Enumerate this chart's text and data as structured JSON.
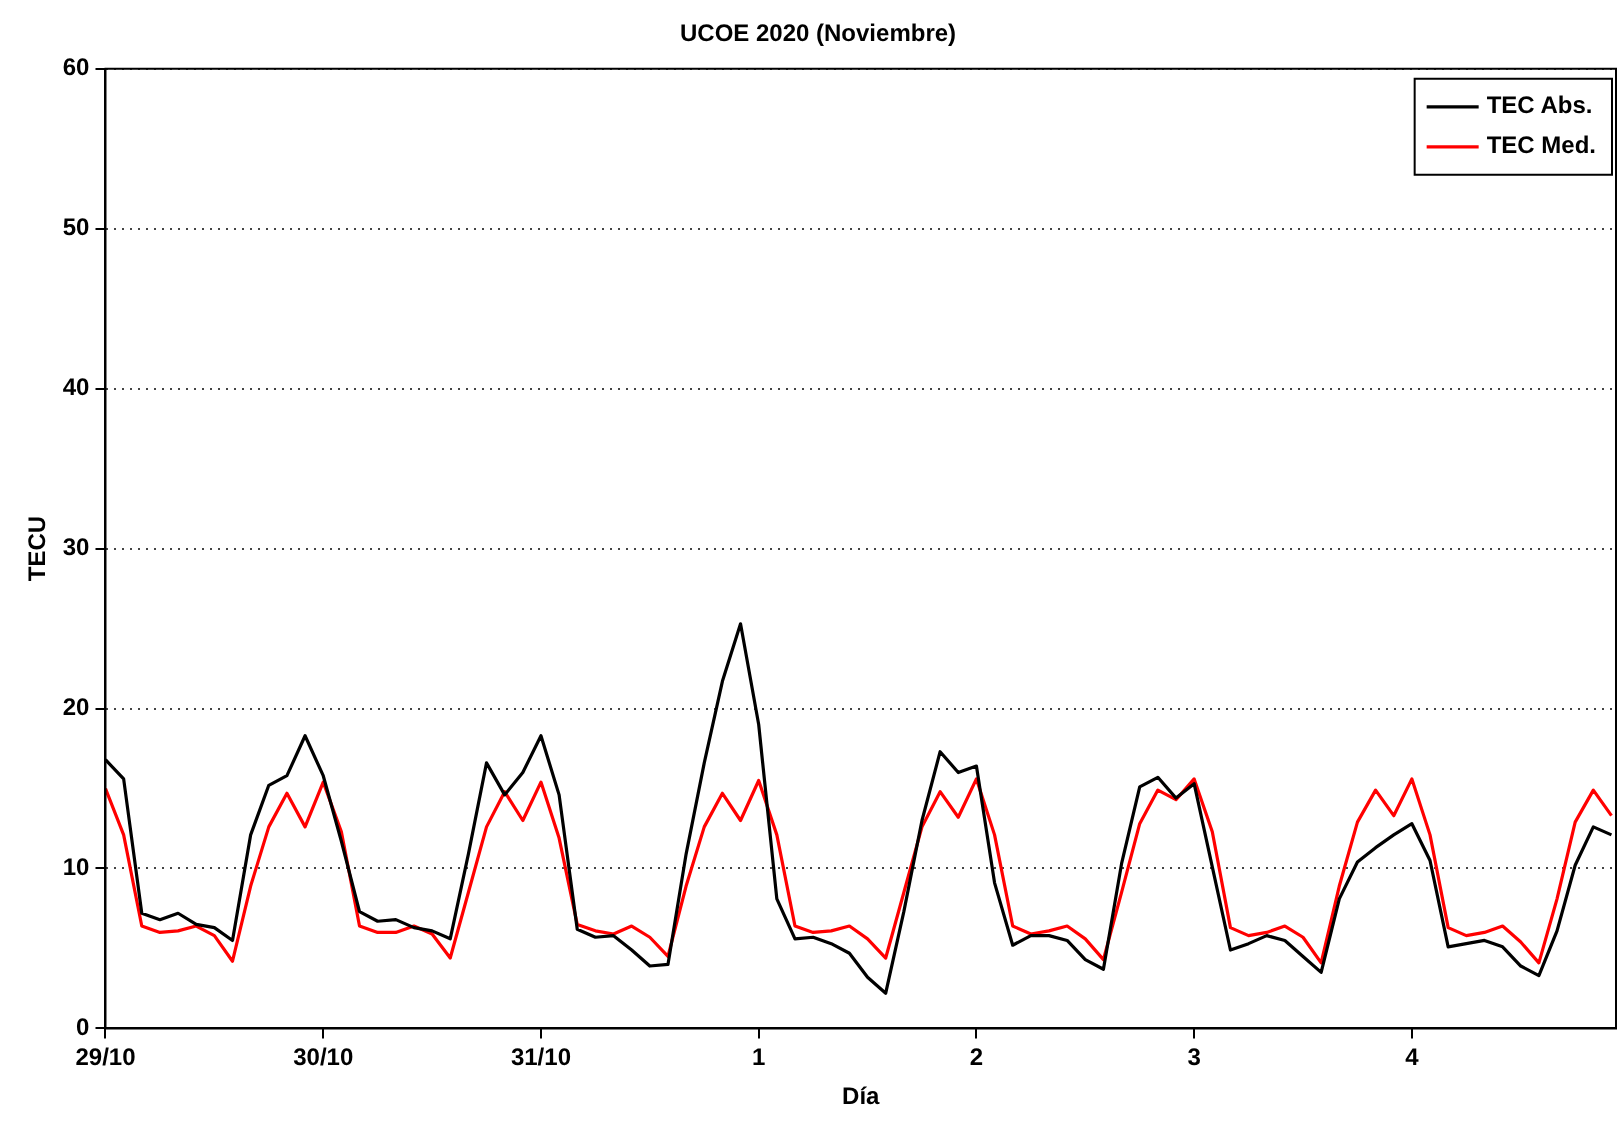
{
  "chart_data": {
    "type": "line",
    "title": "UCOE 2020 (Noviembre)",
    "xlabel": "Día",
    "ylabel": "TECU",
    "x": [
      "2020-10-29T00:00",
      "2020-10-29T02:00",
      "2020-10-29T04:00",
      "2020-10-29T06:00",
      "2020-10-29T08:00",
      "2020-10-29T10:00",
      "2020-10-29T12:00",
      "2020-10-29T14:00",
      "2020-10-29T16:00",
      "2020-10-29T18:00",
      "2020-10-29T20:00",
      "2020-10-29T22:00",
      "2020-10-30T00:00",
      "2020-10-30T02:00",
      "2020-10-30T04:00",
      "2020-10-30T06:00",
      "2020-10-30T08:00",
      "2020-10-30T10:00",
      "2020-10-30T12:00",
      "2020-10-30T14:00",
      "2020-10-30T16:00",
      "2020-10-30T18:00",
      "2020-10-30T20:00",
      "2020-10-30T22:00",
      "2020-10-31T00:00",
      "2020-10-31T02:00",
      "2020-10-31T04:00",
      "2020-10-31T06:00",
      "2020-10-31T08:00",
      "2020-10-31T10:00",
      "2020-10-31T12:00",
      "2020-10-31T14:00",
      "2020-10-31T16:00",
      "2020-10-31T18:00",
      "2020-10-31T20:00",
      "2020-10-31T22:00",
      "2020-11-01T00:00",
      "2020-11-01T02:00",
      "2020-11-01T04:00",
      "2020-11-01T06:00",
      "2020-11-01T08:00",
      "2020-11-01T10:00",
      "2020-11-01T12:00",
      "2020-11-01T14:00",
      "2020-11-01T16:00",
      "2020-11-01T18:00",
      "2020-11-01T20:00",
      "2020-11-01T22:00",
      "2020-11-02T00:00",
      "2020-11-02T02:00",
      "2020-11-02T04:00",
      "2020-11-02T06:00",
      "2020-11-02T08:00",
      "2020-11-02T10:00",
      "2020-11-02T12:00",
      "2020-11-02T14:00",
      "2020-11-02T16:00",
      "2020-11-02T18:00",
      "2020-11-02T20:00",
      "2020-11-02T22:00",
      "2020-11-03T00:00",
      "2020-11-03T02:00",
      "2020-11-03T04:00",
      "2020-11-03T06:00",
      "2020-11-03T08:00",
      "2020-11-03T10:00",
      "2020-11-03T12:00",
      "2020-11-03T14:00",
      "2020-11-03T16:00",
      "2020-11-03T18:00",
      "2020-11-03T20:00",
      "2020-11-03T22:00",
      "2020-11-04T00:00",
      "2020-11-04T02:00",
      "2020-11-04T04:00",
      "2020-11-04T06:00",
      "2020-11-04T08:00",
      "2020-11-04T10:00",
      "2020-11-04T12:00",
      "2020-11-04T14:00",
      "2020-11-04T16:00",
      "2020-11-04T18:00",
      "2020-11-04T20:00",
      "2020-11-04T22:00"
    ],
    "series": [
      {
        "name": "TEC Abs.",
        "color": "#000000",
        "values": [
          16.8,
          15.6,
          7.2,
          6.8,
          7.2,
          6.5,
          6.3,
          5.5,
          12.1,
          15.2,
          15.8,
          18.3,
          15.8,
          11.7,
          7.3,
          6.7,
          6.8,
          6.3,
          6.1,
          5.6,
          10.9,
          16.6,
          14.6,
          16.0,
          18.3,
          14.6,
          6.2,
          5.7,
          5.8,
          4.9,
          3.9,
          4.0,
          10.9,
          16.6,
          21.7,
          25.3,
          19.0,
          8.1,
          5.6,
          5.7,
          5.3,
          4.7,
          3.2,
          2.2,
          7.3,
          13.0,
          17.3,
          16.0,
          16.4,
          9.1,
          5.2,
          5.8,
          5.8,
          5.5,
          4.3,
          3.7,
          10.3,
          15.1,
          15.7,
          14.4,
          15.3,
          10.1,
          4.9,
          5.3,
          5.8,
          5.5,
          4.5,
          3.5,
          8.1,
          10.4,
          11.3,
          12.1,
          12.8,
          10.5,
          5.1,
          5.3,
          5.5,
          5.1,
          3.9,
          3.3,
          6.1,
          10.2,
          12.6,
          12.1
        ]
      },
      {
        "name": "TEC Med.",
        "color": "#ff0000",
        "values": [
          15.0,
          12.1,
          6.4,
          6.0,
          6.1,
          6.4,
          5.8,
          4.2,
          8.9,
          12.6,
          14.7,
          12.6,
          15.4,
          12.3,
          6.4,
          6.0,
          6.0,
          6.4,
          5.9,
          4.4,
          8.5,
          12.6,
          14.8,
          13.0,
          15.4,
          11.9,
          6.5,
          6.1,
          5.9,
          6.4,
          5.7,
          4.5,
          8.9,
          12.6,
          14.7,
          13.0,
          15.5,
          12.1,
          6.4,
          6.0,
          6.1,
          6.4,
          5.6,
          4.4,
          8.5,
          12.6,
          14.8,
          13.2,
          15.6,
          12.1,
          6.4,
          5.9,
          6.1,
          6.4,
          5.6,
          4.3,
          8.5,
          12.8,
          14.9,
          14.3,
          15.6,
          12.3,
          6.3,
          5.8,
          6.0,
          6.4,
          5.7,
          4.1,
          8.9,
          12.9,
          14.9,
          13.3,
          15.6,
          12.1,
          6.3,
          5.8,
          6.0,
          6.4,
          5.4,
          4.1,
          8.1,
          12.9,
          14.9,
          13.3
        ]
      }
    ],
    "xlim": [
      "2020-10-29T00:00",
      "2020-11-04T22:30"
    ],
    "xticks": [
      {
        "value": "2020-10-29",
        "label": "29/10"
      },
      {
        "value": "2020-10-30",
        "label": "30/10"
      },
      {
        "value": "2020-10-31",
        "label": "31/10"
      },
      {
        "value": "2020-11-01",
        "label": "1"
      },
      {
        "value": "2020-11-02",
        "label": "2"
      },
      {
        "value": "2020-11-03",
        "label": "3"
      },
      {
        "value": "2020-11-04",
        "label": "4"
      }
    ],
    "ylim": [
      0,
      60
    ],
    "yticks": [
      0,
      10,
      20,
      30,
      40,
      50,
      60
    ],
    "grid": "y",
    "legend": "top right",
    "marker": "none",
    "line_style": "solid"
  }
}
